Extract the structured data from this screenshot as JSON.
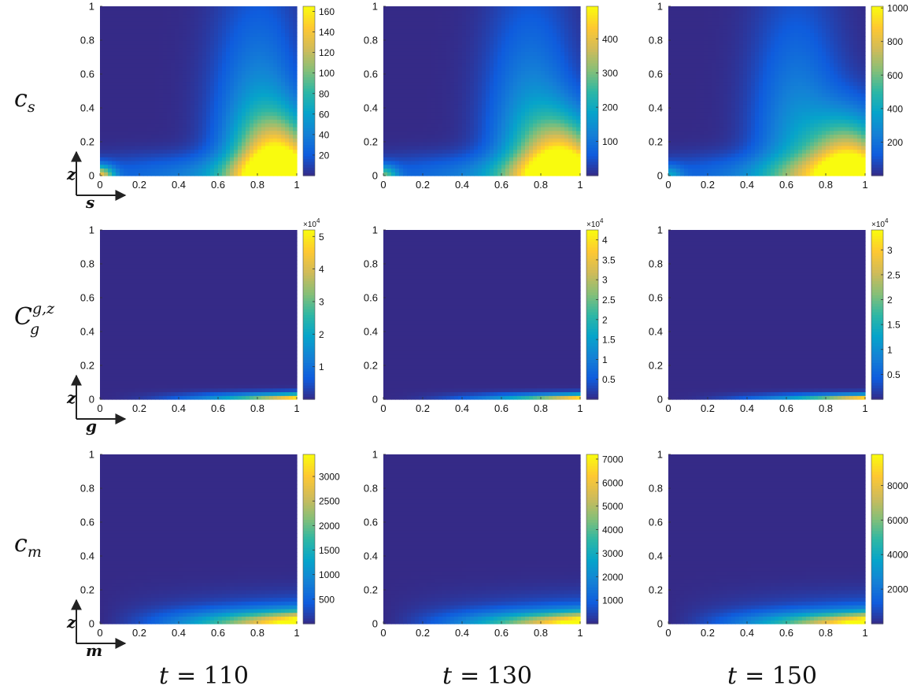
{
  "colormap": {
    "name": "parula",
    "stops": [
      "#352a87",
      "#0f5cdd",
      "#1481d6",
      "#06a4ca",
      "#2eb7a4",
      "#87bf77",
      "#d1bb59",
      "#fec832",
      "#f9fb0e"
    ]
  },
  "rows": [
    {
      "label": "c",
      "sub": "s",
      "sup": "",
      "axis_z": "z",
      "axis_x": "s"
    },
    {
      "label": "C",
      "sub": "g",
      "sup": "g,z",
      "axis_z": "z",
      "axis_x": "g"
    },
    {
      "label": "c",
      "sub": "m",
      "sup": "",
      "axis_z": "z",
      "axis_x": "m"
    }
  ],
  "columns": [
    {
      "t_label": "t",
      "t_eq": "= 110"
    },
    {
      "t_label": "t",
      "t_eq": "= 130"
    },
    {
      "t_label": "t",
      "t_eq": "= 150"
    }
  ],
  "axis_ticks": [
    "0",
    "0.2",
    "0.4",
    "0.6",
    "0.8",
    "1"
  ],
  "axis_tick_values": [
    0,
    0.2,
    0.4,
    0.6,
    0.8,
    1
  ],
  "chart_data": [
    {
      "type": "heatmap",
      "row": 0,
      "col": 0,
      "xlim": [
        0,
        1
      ],
      "ylim": [
        0,
        1
      ],
      "clim": [
        0,
        165
      ],
      "colorbar_ticks": [
        20,
        40,
        60,
        80,
        100,
        120,
        140,
        160
      ],
      "colorbar_exponent": ""
    },
    {
      "type": "heatmap",
      "row": 0,
      "col": 1,
      "xlim": [
        0,
        1
      ],
      "ylim": [
        0,
        1
      ],
      "clim": [
        0,
        495
      ],
      "colorbar_ticks": [
        100,
        200,
        300,
        400
      ],
      "colorbar_exponent": ""
    },
    {
      "type": "heatmap",
      "row": 0,
      "col": 2,
      "xlim": [
        0,
        1
      ],
      "ylim": [
        0,
        1
      ],
      "clim": [
        0,
        1010
      ],
      "colorbar_ticks": [
        200,
        400,
        600,
        800,
        1000
      ],
      "colorbar_exponent": ""
    },
    {
      "type": "heatmap",
      "row": 1,
      "col": 0,
      "xlim": [
        0,
        1
      ],
      "ylim": [
        0,
        1
      ],
      "clim": [
        0,
        5.2
      ],
      "colorbar_ticks": [
        1,
        2,
        3,
        4,
        5
      ],
      "colorbar_exponent": "4"
    },
    {
      "type": "heatmap",
      "row": 1,
      "col": 1,
      "xlim": [
        0,
        1
      ],
      "ylim": [
        0,
        1
      ],
      "clim": [
        0,
        4.25
      ],
      "colorbar_ticks": [
        0.5,
        1,
        1.5,
        2,
        2.5,
        3,
        3.5,
        4
      ],
      "colorbar_exponent": "4"
    },
    {
      "type": "heatmap",
      "row": 1,
      "col": 2,
      "xlim": [
        0,
        1
      ],
      "ylim": [
        0,
        1
      ],
      "clim": [
        0,
        3.4
      ],
      "colorbar_ticks": [
        0.5,
        1,
        1.5,
        2,
        2.5,
        3
      ],
      "colorbar_exponent": "4"
    },
    {
      "type": "heatmap",
      "row": 2,
      "col": 0,
      "xlim": [
        0,
        1
      ],
      "ylim": [
        0,
        1
      ],
      "clim": [
        0,
        3450
      ],
      "colorbar_ticks": [
        500,
        1000,
        1500,
        2000,
        2500,
        3000
      ],
      "colorbar_exponent": ""
    },
    {
      "type": "heatmap",
      "row": 2,
      "col": 1,
      "xlim": [
        0,
        1
      ],
      "ylim": [
        0,
        1
      ],
      "clim": [
        0,
        7200
      ],
      "colorbar_ticks": [
        1000,
        2000,
        3000,
        4000,
        5000,
        6000,
        7000
      ],
      "colorbar_exponent": ""
    },
    {
      "type": "heatmap",
      "row": 2,
      "col": 2,
      "xlim": [
        0,
        1
      ],
      "ylim": [
        0,
        1
      ],
      "clim": [
        0,
        9800
      ],
      "colorbar_ticks": [
        2000,
        4000,
        6000,
        8000
      ],
      "colorbar_exponent": ""
    }
  ]
}
